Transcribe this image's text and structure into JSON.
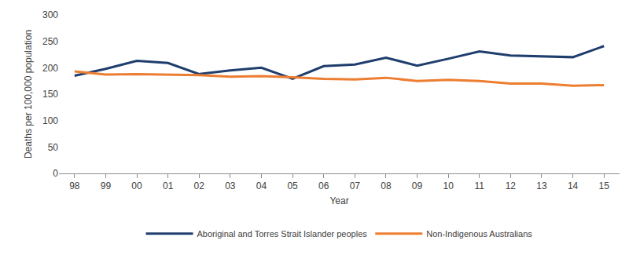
{
  "chart_data": {
    "type": "line",
    "x_label": "Year",
    "y_label": "Deaths per 100,000 population",
    "categories": [
      "98",
      "99",
      "00",
      "01",
      "02",
      "03",
      "04",
      "05",
      "06",
      "07",
      "08",
      "09",
      "10",
      "11",
      "12",
      "13",
      "14",
      "15"
    ],
    "series": [
      {
        "name": "Aboriginal and Torres Strait Islander peoples",
        "color": "#1f3d6d",
        "values": [
          185,
          198,
          213,
          209,
          188,
          195,
          200,
          179,
          203,
          206,
          219,
          204,
          217,
          231,
          223,
          222,
          220,
          241
        ]
      },
      {
        "name": "Non-Indigenous Australians",
        "color": "#ed7d31",
        "values": [
          193,
          187,
          188,
          187,
          186,
          183,
          184,
          182,
          179,
          178,
          181,
          175,
          177,
          175,
          170,
          170,
          166,
          167
        ]
      }
    ],
    "ylim": [
      0,
      300
    ],
    "yticks": [
      0,
      50,
      100,
      150,
      200,
      250,
      300
    ],
    "grid": false,
    "legend": "bottom"
  }
}
